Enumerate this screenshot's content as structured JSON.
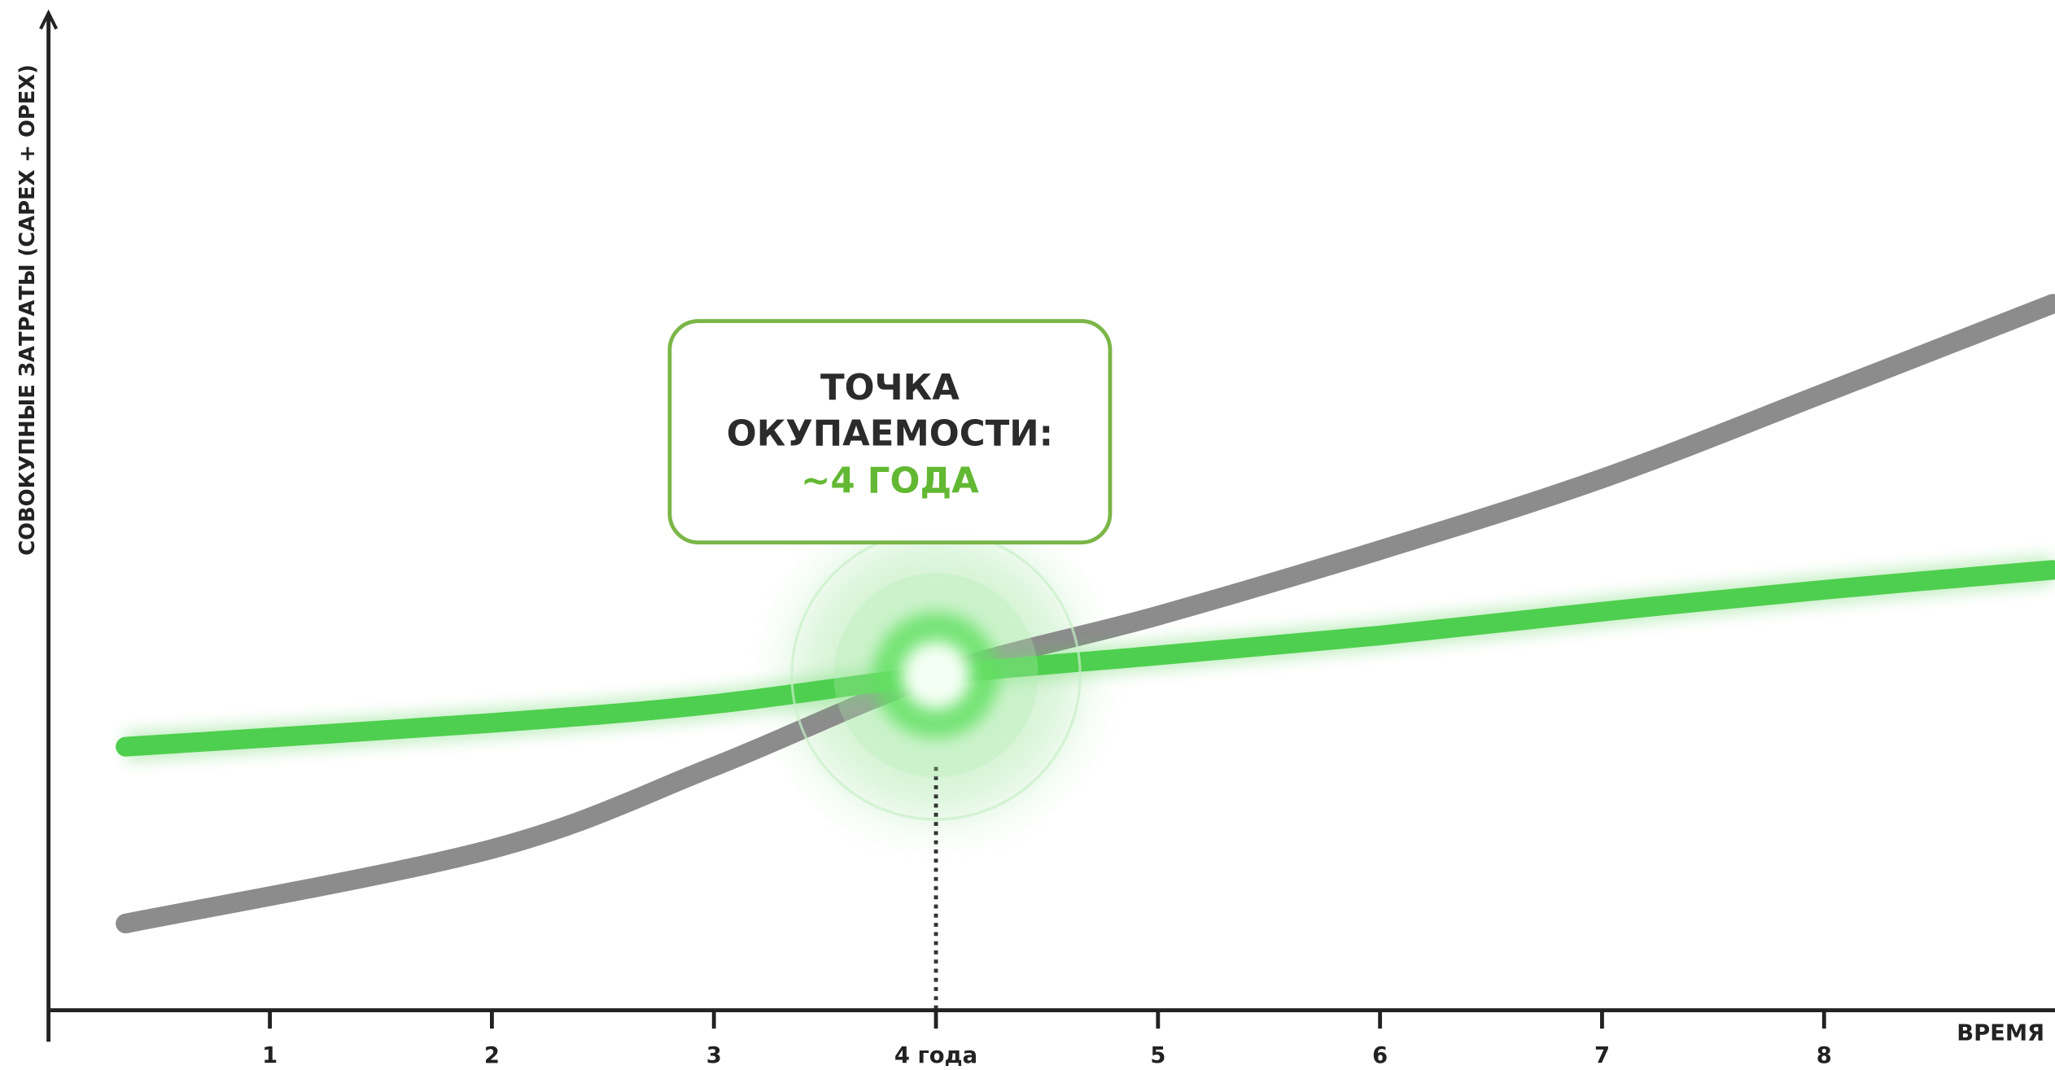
{
  "chart_data": {
    "type": "line",
    "xlabel": "ВРЕМЯ",
    "ylabel": "СОВОКУПНЫЕ ЗАТРАТЫ (CAPEX + OPEX)",
    "annotation": {
      "lines": [
        "ТОЧКА",
        "ОКУПАЕМОСТИ:"
      ],
      "highlight": "~4 ГОДА"
    },
    "breakeven": {
      "x": 4,
      "y": 33.6
    },
    "x": [
      0.35,
      2,
      3,
      4,
      5,
      6,
      7,
      8,
      9.03
    ],
    "series": [
      {
        "color": "#8c8c8c",
        "values": [
          8.6,
          16.1,
          24.4,
          33.6,
          39.6,
          46.2,
          53.4,
          62,
          71
        ]
      },
      {
        "color": "#4fcf4f",
        "values": [
          26.4,
          28.8,
          30.7,
          33.6,
          35.6,
          37.6,
          40,
          42.2,
          44.2
        ]
      }
    ],
    "xlim": [
      0,
      9.04
    ],
    "ylim": [
      0,
      100
    ],
    "xticks": [
      1,
      2,
      3,
      {
        "value": 4,
        "label": "4 года"
      },
      5,
      6,
      7,
      8
    ],
    "grid": false
  }
}
